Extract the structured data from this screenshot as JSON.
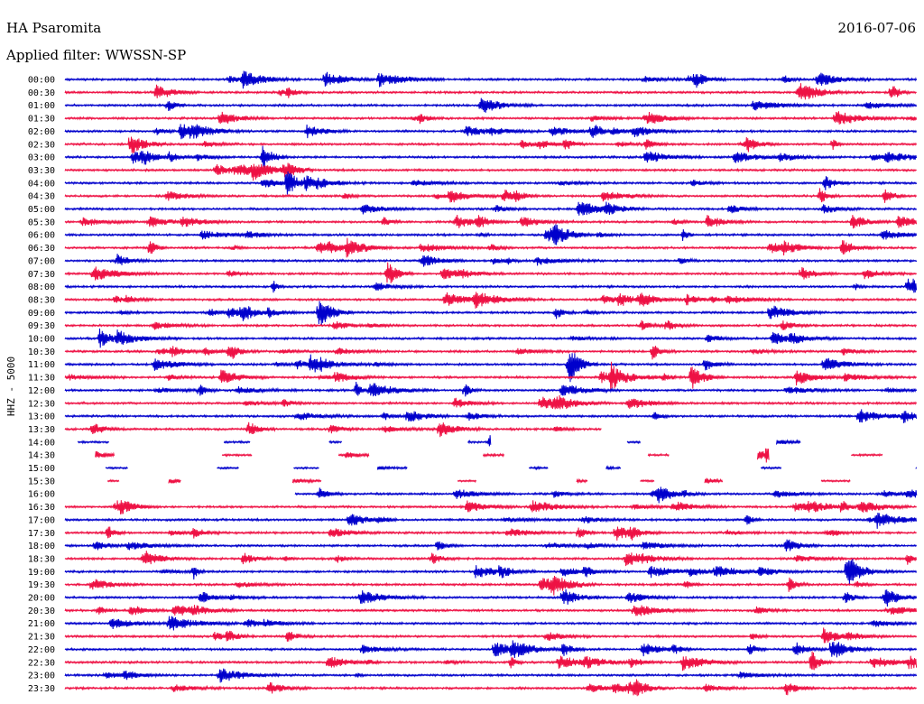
{
  "header": {
    "station": "HA Psaromita",
    "date": "2016-07-06",
    "filter_label": "Applied filter: WWSSN-SP"
  },
  "chart_data": {
    "type": "line",
    "title": "",
    "ylabel": "HHZ - 5000",
    "row_interval_minutes": 30,
    "colors": [
      "#0000cc",
      "#ee1144"
    ],
    "rows": [
      {
        "label": "00:00",
        "gaps": []
      },
      {
        "label": "00:30",
        "gaps": []
      },
      {
        "label": "01:00",
        "gaps": []
      },
      {
        "label": "01:30",
        "gaps": []
      },
      {
        "label": "02:00",
        "gaps": []
      },
      {
        "label": "02:30",
        "gaps": []
      },
      {
        "label": "03:00",
        "gaps": []
      },
      {
        "label": "03:30",
        "gaps": []
      },
      {
        "label": "04:00",
        "gaps": []
      },
      {
        "label": "04:30",
        "gaps": []
      },
      {
        "label": "05:00",
        "gaps": []
      },
      {
        "label": "05:30",
        "gaps": []
      },
      {
        "label": "06:00",
        "gaps": []
      },
      {
        "label": "06:30",
        "gaps": []
      },
      {
        "label": "07:00",
        "gaps": []
      },
      {
        "label": "07:30",
        "gaps": []
      },
      {
        "label": "08:00",
        "gaps": []
      },
      {
        "label": "08:30",
        "gaps": []
      },
      {
        "label": "09:00",
        "gaps": []
      },
      {
        "label": "09:30",
        "gaps": []
      },
      {
        "label": "10:00",
        "gaps": []
      },
      {
        "label": "10:30",
        "gaps": []
      },
      {
        "label": "11:00",
        "gaps": []
      },
      {
        "label": "11:30",
        "gaps": []
      },
      {
        "label": "12:00",
        "gaps": []
      },
      {
        "label": "12:30",
        "gaps": []
      },
      {
        "label": "13:00",
        "gaps": []
      },
      {
        "label": "13:30",
        "gaps": [
          [
            0.63,
            1.0
          ]
        ]
      },
      {
        "label": "14:00",
        "gaps": "intermittent"
      },
      {
        "label": "14:30",
        "gaps": "intermittent"
      },
      {
        "label": "15:00",
        "gaps": "intermittent"
      },
      {
        "label": "15:30",
        "gaps": "intermittent"
      },
      {
        "label": "16:00",
        "gaps": [
          [
            0.0,
            0.27
          ]
        ]
      },
      {
        "label": "16:30",
        "gaps": []
      },
      {
        "label": "17:00",
        "gaps": []
      },
      {
        "label": "17:30",
        "gaps": []
      },
      {
        "label": "18:00",
        "gaps": []
      },
      {
        "label": "18:30",
        "gaps": []
      },
      {
        "label": "19:00",
        "gaps": []
      },
      {
        "label": "19:30",
        "gaps": []
      },
      {
        "label": "20:00",
        "gaps": []
      },
      {
        "label": "20:30",
        "gaps": []
      },
      {
        "label": "21:00",
        "gaps": []
      },
      {
        "label": "21:30",
        "gaps": []
      },
      {
        "label": "22:00",
        "gaps": []
      },
      {
        "label": "22:30",
        "gaps": []
      },
      {
        "label": "23:00",
        "gaps": []
      },
      {
        "label": "23:30",
        "gaps": []
      }
    ]
  }
}
